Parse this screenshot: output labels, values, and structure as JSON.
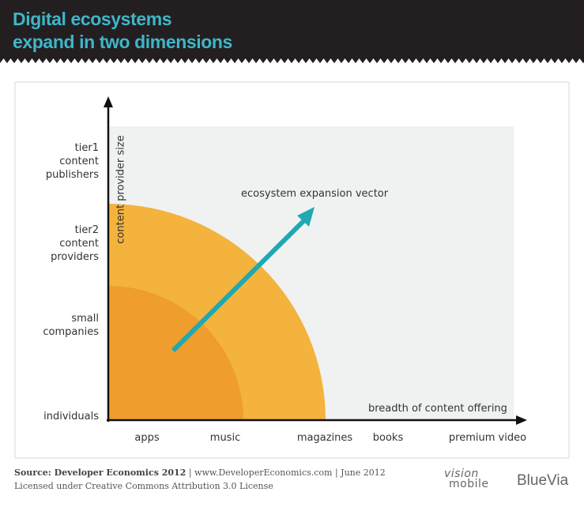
{
  "header": {
    "title_line1": "Digital ecosystems",
    "title_line2": "expand in two dimensions",
    "background": "#231f20",
    "title_color": "#3fb6c9"
  },
  "diagram": {
    "y_axis_title": "content provider size",
    "x_axis_title": "breadth of content offering",
    "y_levels": [
      "individuals",
      "small\ncompanies",
      "tier2\ncontent\nproviders",
      "tier1\ncontent\npublishers"
    ],
    "x_levels": [
      "apps",
      "music",
      "magazines",
      "books",
      "premium video"
    ],
    "inner_region": {
      "reach_x": "music",
      "reach_y": "small companies",
      "color": "#ef9d2c"
    },
    "outer_region": {
      "reach_x": "magazines",
      "reach_y": "tier2 content providers",
      "color": "#f3b33d"
    },
    "vector": {
      "label": "ecosystem expansion vector",
      "color": "#1fa9b2"
    },
    "plot_background": "#f0f2f2"
  },
  "footer": {
    "source_label": "Source: Developer Economics 2012",
    "source_rest": " | www.DeveloperEconomics.com | June 2012",
    "license": "Licensed under Creative Commons Attribution 3.0 License",
    "logo_visionmobile_top": "vision",
    "logo_visionmobile_bottom": "mobile",
    "logo_bluevia": "BlueVia"
  }
}
